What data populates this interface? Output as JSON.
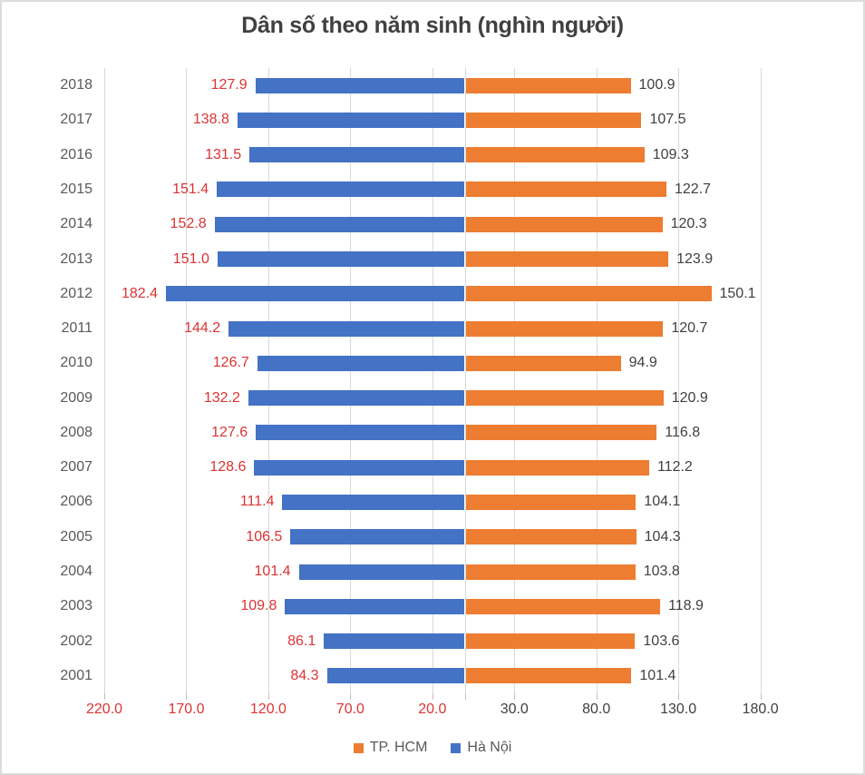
{
  "title": "Dân số theo năm sinh (nghìn người)",
  "legend": {
    "items": [
      {
        "label": "TP. HCM",
        "color": "#ED7D31"
      },
      {
        "label": "Hà Nội",
        "color": "#4472C4"
      }
    ]
  },
  "colors": {
    "hanoi_blue": "#4472C4",
    "hcm_orange": "#ED7D31",
    "left_value_label_red": "#DD3333",
    "right_value_label_dark": "#404040",
    "year_label_gray": "#595959",
    "gridline_gray": "#D9D9D9"
  },
  "x_axis": {
    "ticks": [
      {
        "value": -220,
        "label": "220.0"
      },
      {
        "value": -170,
        "label": "170.0"
      },
      {
        "value": -120,
        "label": "120.0"
      },
      {
        "value": -70,
        "label": "70.0"
      },
      {
        "value": -20,
        "label": "20.0"
      },
      {
        "value": 30,
        "label": "30.0"
      },
      {
        "value": 80,
        "label": "80.0"
      },
      {
        "value": 130,
        "label": "130.0"
      },
      {
        "value": 180,
        "label": "180.0"
      }
    ]
  },
  "chart_data": {
    "type": "bar",
    "subtype": "diverging-horizontal",
    "title": "Dân số theo năm sinh (nghìn người)",
    "xlabel": "",
    "ylabel": "",
    "categories": [
      "2018",
      "2017",
      "2016",
      "2015",
      "2014",
      "2013",
      "2012",
      "2011",
      "2010",
      "2009",
      "2008",
      "2007",
      "2006",
      "2005",
      "2004",
      "2003",
      "2002",
      "2001"
    ],
    "series": [
      {
        "name": "Hà Nội",
        "side": "left",
        "color": "#4472C4",
        "values": [
          127.9,
          138.8,
          131.5,
          151.4,
          152.8,
          151.0,
          182.4,
          144.2,
          126.7,
          132.2,
          127.6,
          128.6,
          111.4,
          106.5,
          101.4,
          109.8,
          86.1,
          84.3
        ]
      },
      {
        "name": "TP. HCM",
        "side": "right",
        "color": "#ED7D31",
        "values": [
          100.9,
          107.5,
          109.3,
          122.7,
          120.3,
          123.9,
          150.1,
          120.7,
          94.9,
          120.9,
          116.8,
          112.2,
          104.1,
          104.3,
          103.8,
          118.9,
          103.6,
          101.4
        ]
      }
    ],
    "x_range": [
      -220,
      230
    ],
    "x_tick_step": 50,
    "grid": true,
    "legend_position": "bottom",
    "value_label_format": "one decimal, absolute value; left series labels red, right series labels dark gray"
  }
}
